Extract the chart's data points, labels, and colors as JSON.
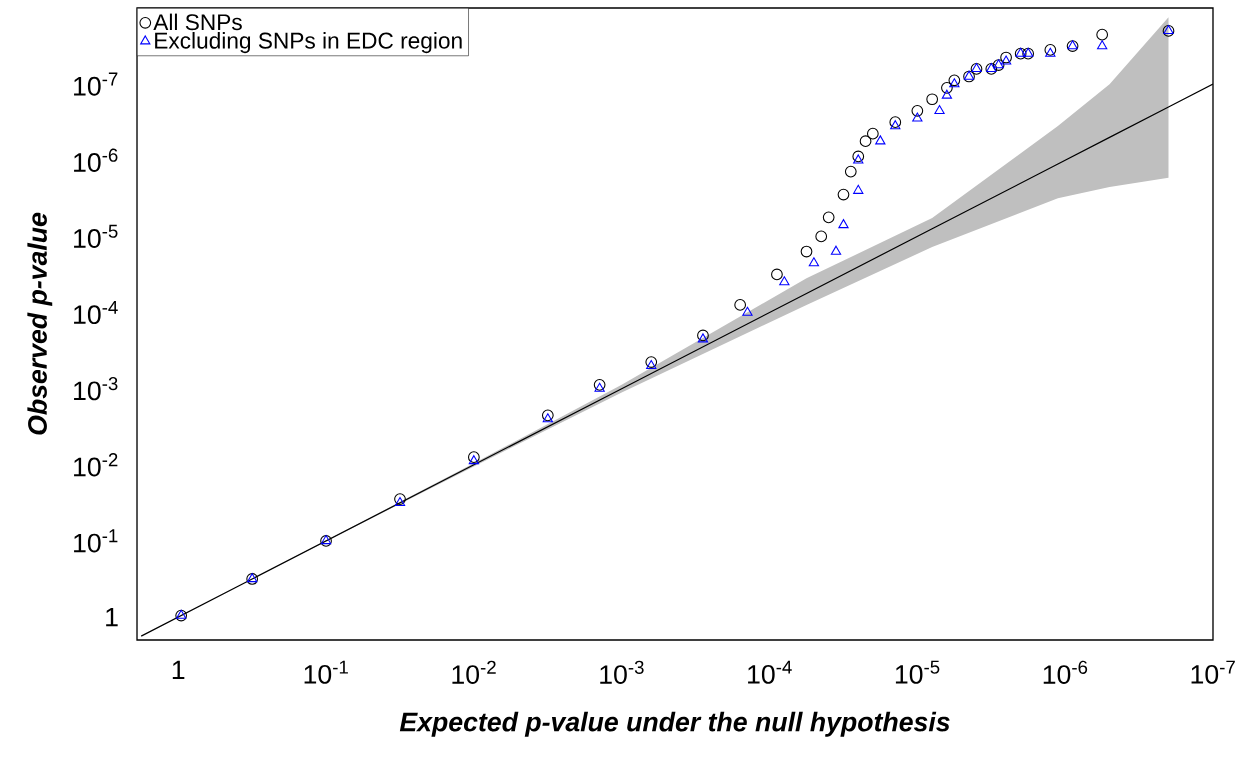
{
  "chart_data": {
    "type": "scatter",
    "xlabel": "Expected p-value under the null hypothesis",
    "ylabel": "Observed p-value",
    "xlim": [
      1.9,
      1e-07
    ],
    "ylim": [
      2,
      1e-08
    ],
    "xticks": [
      1,
      {
        "value": 0.1,
        "label": "10$^{-1}$"
      },
      {
        "value": 0.01,
        "label": "10$^{-2}$"
      },
      {
        "value": 0.001,
        "label": "10$^{-3}$"
      },
      {
        "value": 0.0001,
        "label": "10$^{-4}$"
      },
      {
        "value": 1e-05,
        "label": "10$^{-5}$"
      },
      {
        "value": 1e-06,
        "label": "10$^{-6}$"
      },
      {
        "value": 1e-07,
        "label": "10$^{-7}$"
      }
    ],
    "yticks": [
      1,
      {
        "value": 0.1,
        "label": "10$^{-1}$"
      },
      {
        "value": 0.01,
        "label": "10$^{-2}$"
      },
      {
        "value": 0.001,
        "label": "10$^{-3}$"
      },
      {
        "value": 0.0001,
        "label": "10$^{-4}$"
      },
      {
        "value": 1e-05,
        "label": "10$^{-5}$"
      },
      {
        "value": 1e-06,
        "label": "10$^{-6}$"
      },
      {
        "value": 1e-07,
        "label": "10$^{-7}$"
      }
    ],
    "log": "xy",
    "legend": "top left",
    "grid": false,
    "series": [
      {
        "type": "line",
        "color": "#000000",
        "marker": "none",
        "x": [
          1.78,
          0.316,
          0.01,
          0.001,
          5.62e-05,
          7.94e-06,
          1.12e-06,
          5.01e-07,
          2e-07,
          1e-07
        ],
        "values": [
          1.78,
          0.316,
          0.01,
          0.001,
          5.62e-05,
          7.94e-06,
          1.12e-06,
          5.01e-07,
          2e-07,
          1e-07
        ],
        "lower": [
          null,
          0.316,
          0.0105,
          0.00112,
          7.94e-05,
          1.38e-05,
          3.16e-06,
          2.24e-06,
          1.7e-06,
          null
        ],
        "upper": [
          null,
          0.316,
          0.00955,
          0.000891,
          3.55e-05,
          5.75e-06,
          3.55e-07,
          1e-07,
          1.32e-08,
          null
        ]
      },
      {
        "name": "All SNPs",
        "color": "#000000",
        "marker": "circle",
        "x": [
          0.955,
          0.316,
          0.1,
          0.0316,
          0.01,
          0.00316,
          0.00141,
          0.000631,
          0.000282,
          0.000158,
          8.91e-05,
          5.62e-05,
          4.47e-05,
          3.98e-05,
          3.16e-05,
          2.82e-05,
          2.51e-05,
          2.24e-05,
          2e-05,
          1.41e-05,
          1e-05,
          7.94e-06,
          6.31e-06,
          5.62e-06,
          4.47e-06,
          3.98e-06,
          3.16e-06,
          2.82e-06,
          2.51e-06,
          2e-06,
          1.78e-06,
          1.26e-06,
          8.91e-07,
          5.62e-07,
          2e-07
        ],
        "values": [
          0.955,
          0.316,
          0.1,
          0.0282,
          0.00794,
          0.00224,
          0.000891,
          0.000447,
          0.0002,
          7.94e-05,
          3.16e-05,
          1.58e-05,
          1e-05,
          5.62e-06,
          2.82e-06,
          1.41e-06,
          8.91e-07,
          5.62e-07,
          4.47e-07,
          3.16e-07,
          2.24e-07,
          1.58e-07,
          1.12e-07,
          8.91e-08,
          7.94e-08,
          6.31e-08,
          6.31e-08,
          5.62e-08,
          4.47e-08,
          3.98e-08,
          3.98e-08,
          3.55e-08,
          3.16e-08,
          2.24e-08,
          2e-08
        ]
      },
      {
        "name": "Excluding SNPs in EDC region",
        "color": "#0000ff",
        "marker": "triangle",
        "x": [
          0.955,
          0.316,
          0.1,
          0.0316,
          0.01,
          0.00316,
          0.00141,
          0.000631,
          0.000282,
          0.000141,
          7.94e-05,
          5.01e-05,
          3.55e-05,
          3.16e-05,
          2.51e-05,
          2.51e-05,
          1.78e-05,
          1.41e-05,
          1e-05,
          7.08e-06,
          6.31e-06,
          5.62e-06,
          4.47e-06,
          3.98e-06,
          3.16e-06,
          2.82e-06,
          2.51e-06,
          2e-06,
          1.78e-06,
          1.26e-06,
          8.91e-07,
          5.62e-07,
          2e-07
        ],
        "values": [
          0.955,
          0.316,
          0.1,
          0.0316,
          0.00891,
          0.00251,
          0.001,
          0.000501,
          0.000224,
          0.0001,
          3.98e-05,
          2.24e-05,
          1.58e-05,
          7.08e-06,
          2.51e-06,
          1e-06,
          5.62e-07,
          3.55e-07,
          2.82e-07,
          2.24e-07,
          1.41e-07,
          1e-07,
          7.94e-08,
          6.31e-08,
          6.31e-08,
          5.62e-08,
          5.01e-08,
          3.98e-08,
          3.98e-08,
          3.98e-08,
          3.16e-08,
          3.16e-08,
          2e-08
        ]
      }
    ]
  }
}
